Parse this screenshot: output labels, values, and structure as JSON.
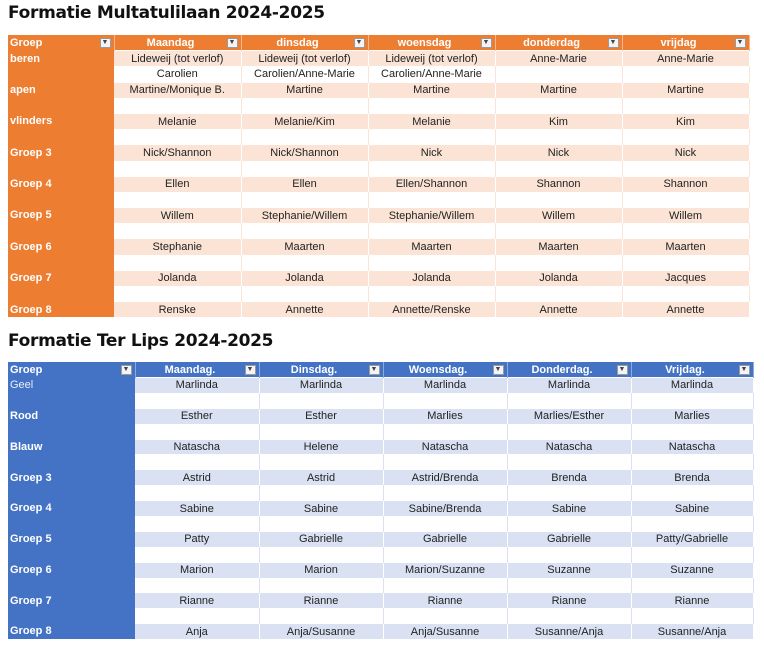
{
  "table1": {
    "title": "Formatie Multatulilaan 2024-2025",
    "headers": [
      "Groep",
      "Maandag",
      "dinsdag",
      "woensdag",
      "donderdag",
      "vrijdag"
    ],
    "rows": [
      [
        "beren",
        "Lideweij (tot verlof)",
        "Lideweij (tot verlof)",
        "Lideweij (tot verlof)",
        "Anne-Marie",
        "Anne-Marie"
      ],
      [
        "",
        "Carolien",
        "Carolien/Anne-Marie",
        "Carolien/Anne-Marie",
        "",
        ""
      ],
      [
        "apen",
        "Martine/Monique B.",
        "Martine",
        "Martine",
        "Martine",
        "Martine"
      ],
      [
        "",
        "",
        "",
        "",
        "",
        ""
      ],
      [
        "vlinders",
        "Melanie",
        "Melanie/Kim",
        "Melanie",
        "Kim",
        "Kim"
      ],
      [
        "",
        "",
        "",
        "",
        "",
        ""
      ],
      [
        "Groep 3",
        "Nick/Shannon",
        "Nick/Shannon",
        "Nick",
        "Nick",
        "Nick"
      ],
      [
        "",
        "",
        "",
        "",
        "",
        ""
      ],
      [
        "Groep 4",
        "Ellen",
        "Ellen",
        "Ellen/Shannon",
        "Shannon",
        "Shannon"
      ],
      [
        "",
        "",
        "",
        "",
        "",
        ""
      ],
      [
        "Groep 5",
        "Willem",
        "Stephanie/Willem",
        "Stephanie/Willem",
        "Willem",
        "Willem"
      ],
      [
        "",
        "",
        "",
        "",
        "",
        ""
      ],
      [
        "Groep 6",
        "Stephanie",
        "Maarten",
        "Maarten",
        "Maarten",
        "Maarten"
      ],
      [
        "",
        "",
        "",
        "",
        "",
        ""
      ],
      [
        "Groep 7",
        "Jolanda",
        "Jolanda",
        "Jolanda",
        "Jolanda",
        "Jacques"
      ],
      [
        "",
        "",
        "",
        "",
        "",
        ""
      ],
      [
        "Groep 8",
        "Renske",
        "Annette",
        "Annette/Renske",
        "Annette",
        "Annette"
      ]
    ]
  },
  "table2": {
    "title": "Formatie Ter Lips 2024-2025",
    "headers": [
      "Groep",
      "Maandag.",
      "Dinsdag.",
      "Woensdag.",
      "Donderdag.",
      "Vrijdag."
    ],
    "rows": [
      [
        "Geel",
        "Marlinda",
        "Marlinda",
        "Marlinda",
        "Marlinda",
        "Marlinda"
      ],
      [
        "",
        "",
        "",
        "",
        "",
        ""
      ],
      [
        "Rood",
        "Esther",
        "Esther",
        "Marlies",
        "Marlies/Esther",
        "Marlies"
      ],
      [
        "",
        "",
        "",
        "",
        "",
        ""
      ],
      [
        "Blauw",
        "Natascha",
        "Helene",
        "Natascha",
        "Natascha",
        "Natascha"
      ],
      [
        "",
        "",
        "",
        "",
        "",
        ""
      ],
      [
        "Groep 3",
        "Astrid",
        "Astrid",
        "Astrid/Brenda",
        "Brenda",
        "Brenda"
      ],
      [
        "",
        "",
        "",
        "",
        "",
        ""
      ],
      [
        "Groep 4",
        "Sabine",
        "Sabine",
        "Sabine/Brenda",
        "Sabine",
        "Sabine"
      ],
      [
        "",
        "",
        "",
        "",
        "",
        ""
      ],
      [
        "Groep 5",
        "Patty",
        "Gabrielle",
        "Gabrielle",
        "Gabrielle",
        "Patty/Gabrielle"
      ],
      [
        "",
        "",
        "",
        "",
        "",
        ""
      ],
      [
        "Groep 6",
        "Marion",
        "Marion",
        "Marion/Suzanne",
        "Suzanne",
        "Suzanne"
      ],
      [
        "",
        "",
        "",
        "",
        "",
        ""
      ],
      [
        "Groep 7",
        "Rianne",
        "Rianne",
        "Rianne",
        "Rianne",
        "Rianne"
      ],
      [
        "",
        "",
        "",
        "",
        "",
        ""
      ],
      [
        "Groep 8",
        "Anja",
        "Anja/Susanne",
        "Anja/Susanne",
        "Susanne/Anja",
        "Susanne/Anja"
      ]
    ]
  },
  "icons": {
    "filter_dropdown": "dropdown-arrow-icon"
  },
  "colors": {
    "orange_header": "#ed7d31",
    "orange_band": "#fbe4d5",
    "blue_header": "#4472c4",
    "blue_band": "#d9e1f2"
  }
}
